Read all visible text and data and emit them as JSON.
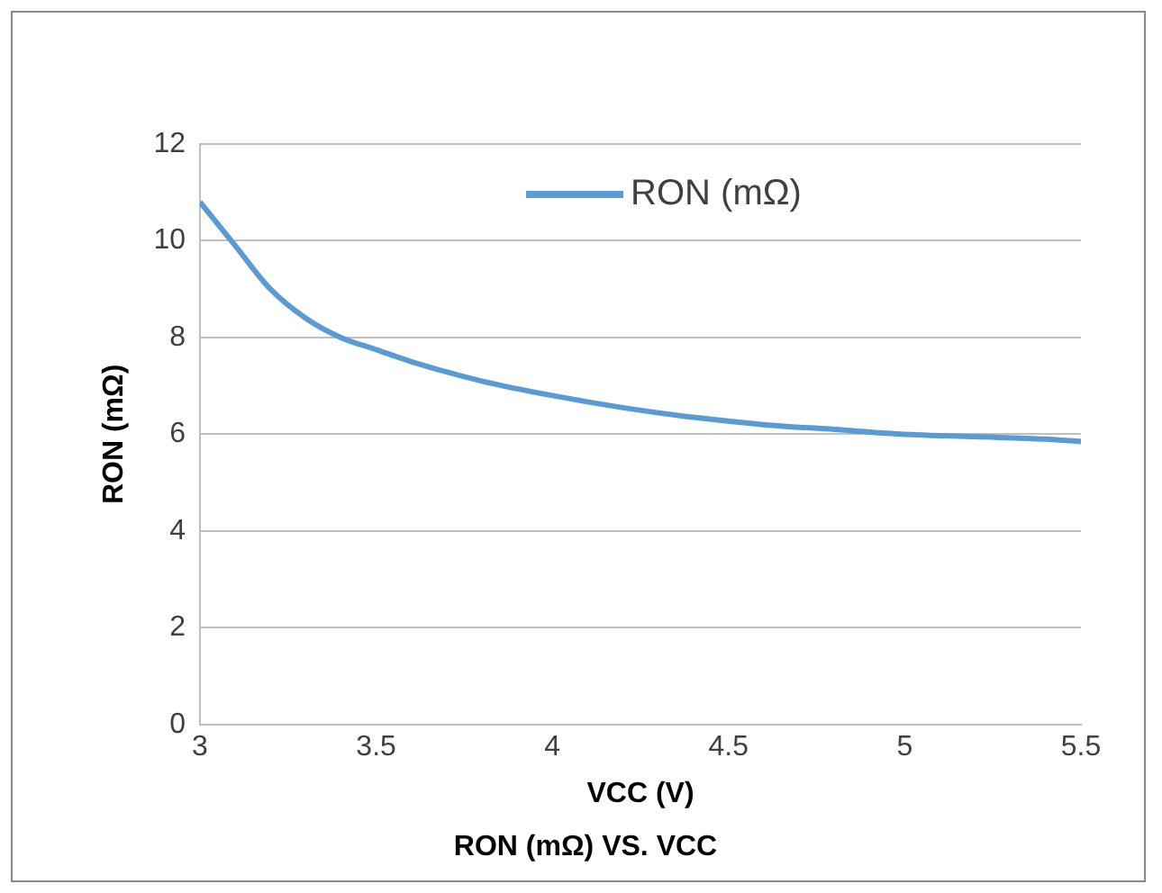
{
  "chart_data": {
    "type": "line",
    "title": "RON (mΩ) VS. VCC",
    "xlabel": "VCC (V)",
    "ylabel": "RON (mΩ)",
    "xlim": [
      3,
      5.5
    ],
    "xticks": [
      3,
      3.5,
      4,
      4.5,
      5,
      5.5
    ],
    "ylim": [
      0,
      12
    ],
    "yticks": [
      0,
      2,
      4,
      6,
      8,
      10,
      12
    ],
    "grid": "y",
    "legend": "top",
    "marker": "none",
    "line_style": "solid",
    "series": [
      {
        "name": "RON (mΩ)",
        "color": "#5b9bd5",
        "x": [
          3,
          3.1,
          3.2,
          3.3,
          3.4,
          3.5,
          3.6,
          3.8,
          4,
          4.2,
          4.4,
          4.6,
          4.8,
          5,
          5.2,
          5.4,
          5.5
        ],
        "values": [
          10.8,
          9.9,
          9.0,
          8.4,
          8.0,
          7.75,
          7.5,
          7.1,
          6.8,
          6.55,
          6.35,
          6.2,
          6.1,
          6.0,
          5.95,
          5.9,
          5.85
        ]
      }
    ]
  }
}
